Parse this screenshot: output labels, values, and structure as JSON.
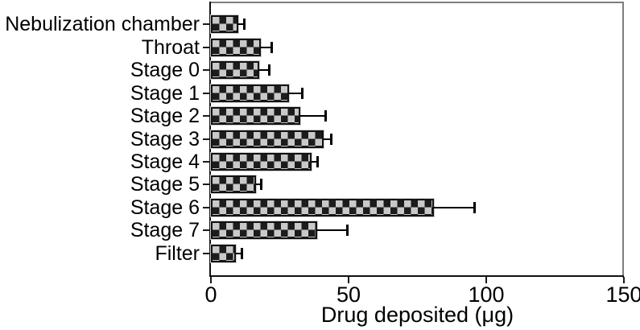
{
  "chart_data": {
    "type": "bar",
    "orientation": "horizontal",
    "title": "",
    "xlabel": "Drug deposited (μg)",
    "ylabel": "",
    "xlim": [
      0,
      150
    ],
    "x_ticks": [
      0,
      50,
      100,
      150
    ],
    "grid": false,
    "legend": "none",
    "bar_pattern": "checkerboard",
    "categories": [
      "Nebulization chamber",
      "Throat",
      "Stage 0",
      "Stage 1",
      "Stage 2",
      "Stage 3",
      "Stage 4",
      "Stage 5",
      "Stage 6",
      "Stage 7",
      "Filter"
    ],
    "values": [
      10,
      18,
      17.5,
      28.5,
      32.5,
      41,
      36.5,
      16.5,
      81,
      38.5,
      9
    ],
    "errors": [
      2,
      4,
      3.5,
      4.5,
      9,
      2.5,
      2,
      1.5,
      14.5,
      11,
      2
    ],
    "colors": {
      "bar_dark": "#1c1c1c",
      "bar_light": "#c9c9c9",
      "bar_border": "#121212",
      "frame": "#7d7d7d",
      "axis": "#111111",
      "text": "#000000",
      "background": "#ffffff"
    }
  }
}
